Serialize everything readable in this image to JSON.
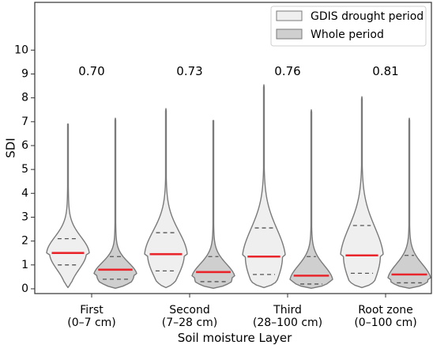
{
  "chart_data": {
    "type": "violin",
    "ylabel": "SDI",
    "xlabel": "Soil moisture Layer",
    "ylim": [
      -0.2,
      12.0
    ],
    "yticks": [
      0,
      1,
      2,
      3,
      4,
      5,
      6,
      7,
      8,
      9,
      10
    ],
    "categories": [
      {
        "line1": "First",
        "line2": "(0–7 cm)"
      },
      {
        "line1": "Second",
        "line2": "(7–28 cm)"
      },
      {
        "line1": "Third",
        "line2": "(28–100 cm)"
      },
      {
        "line1": "Root zone",
        "line2": "(0–100 cm)"
      }
    ],
    "annotations": [
      "0.70",
      "0.73",
      "0.76",
      "0.81"
    ],
    "annotation_y": 9.1,
    "legend": {
      "placement": "upper-right",
      "entries": [
        "GDIS drought period",
        "Whole period"
      ]
    },
    "series": [
      {
        "name": "GDIS drought period",
        "color": "#efefef",
        "stats": [
          {
            "min": 0.05,
            "max": 6.9,
            "q1": 1.0,
            "median": 1.5,
            "q3": 2.1
          },
          {
            "min": 0.05,
            "max": 7.55,
            "q1": 0.75,
            "median": 1.45,
            "q3": 2.35
          },
          {
            "min": 0.05,
            "max": 8.55,
            "q1": 0.6,
            "median": 1.35,
            "q3": 2.55
          },
          {
            "min": 0.05,
            "max": 8.05,
            "q1": 0.65,
            "median": 1.4,
            "q3": 2.65
          }
        ]
      },
      {
        "name": "Whole period",
        "color": "#cfcfcf",
        "stats": [
          {
            "min": 0.02,
            "max": 7.15,
            "q1": 0.4,
            "median": 0.8,
            "q3": 1.35
          },
          {
            "min": 0.02,
            "max": 7.05,
            "q1": 0.3,
            "median": 0.7,
            "q3": 1.35
          },
          {
            "min": 0.02,
            "max": 7.5,
            "q1": 0.2,
            "median": 0.55,
            "q3": 1.35
          },
          {
            "min": 0.02,
            "max": 7.15,
            "q1": 0.25,
            "median": 0.6,
            "q3": 1.4
          }
        ]
      }
    ],
    "median_color": "#e8262b",
    "outline_color": "#7a7a7a"
  }
}
